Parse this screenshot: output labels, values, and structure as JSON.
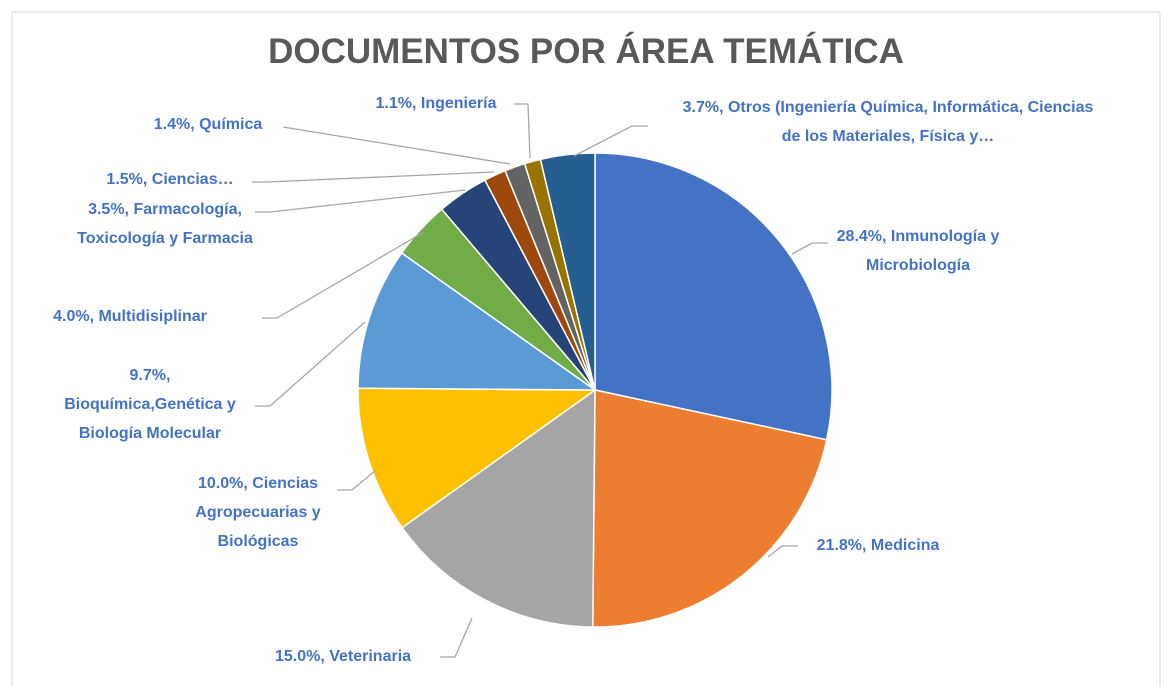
{
  "chart_data": {
    "type": "pie",
    "title": "DOCUMENTOS POR ÁREA TEMÁTICA",
    "values": [
      28.4,
      21.8,
      15.0,
      10.0,
      9.7,
      4.0,
      3.5,
      1.5,
      1.4,
      1.1,
      3.7
    ],
    "value_labels": [
      "28.4%, Inmunología y Microbiología",
      "21.8%, Medicina",
      "15.0%, Veterinaria",
      "10.0%, Ciencias Agropecuarias y Biológicas",
      "9.7%, Bioquímica,Genética y Biología Molecular",
      "4.0%, Multidisiplinar",
      "3.5%, Farmacología, Toxicología y Farmacia",
      "1.5%, Ciencias…",
      "1.4%, Química",
      "1.1%, Ingeniería",
      "3.7%, Otros (Ingeniería Química, Informática, Ciencias de los Materiales, Física y…"
    ],
    "colors": [
      "#4472c4",
      "#ed7d31",
      "#a5a5a5",
      "#ffc000",
      "#5b9bd5",
      "#70ad47",
      "#264478",
      "#9e480e",
      "#636363",
      "#997300",
      "#255e91"
    ]
  }
}
